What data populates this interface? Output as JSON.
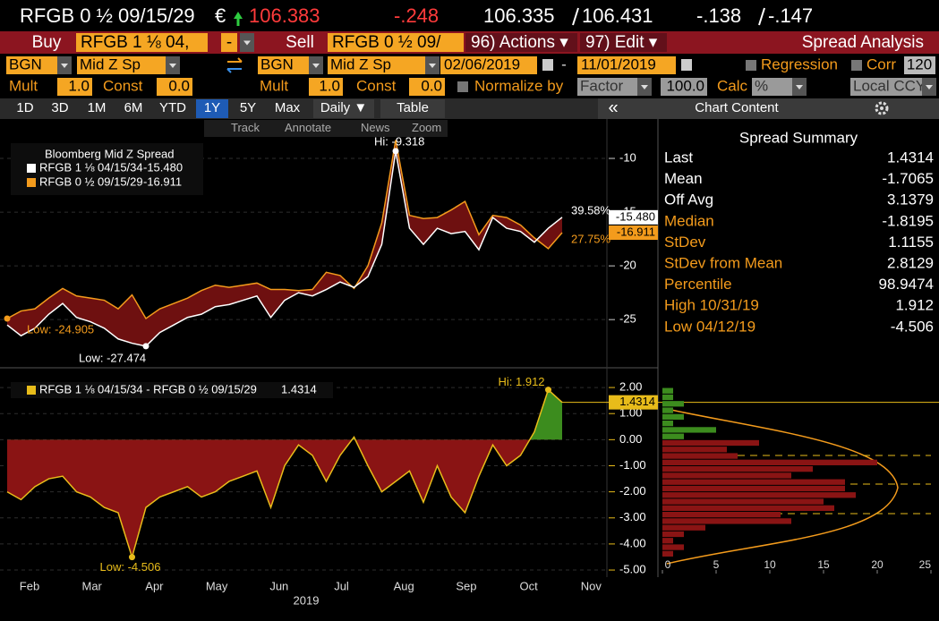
{
  "quote_bar": {
    "security": "RFGB 0 ½ 09/15/29",
    "currency": "€",
    "price": "106.383",
    "change": "-.248",
    "bid": "106.335",
    "ask": "106.431",
    "bid_change": "-.138",
    "ask_change": "-.147"
  },
  "order_bar": {
    "buy": "Buy",
    "buy_security": "RFGB 1 ⅛ 04,",
    "dash": "-",
    "sell": "Sell",
    "sell_security": "RFGB 0 ½ 09/",
    "actions": "96) Actions ▾",
    "edit": "97) Edit ▾",
    "title": "Spread Analysis"
  },
  "settings": {
    "source_1": "BGN",
    "field_1": "Mid Z Sp",
    "source_2": "BGN",
    "field_2": "Mid Z Sp",
    "start_date": "02/06/2019",
    "date_separator": "-",
    "end_date": "11/01/2019",
    "regression": "Regression",
    "corr": "Corr",
    "corr_window": "120",
    "mult_label_1": "Mult",
    "mult_1": "1.0",
    "const_label_1": "Const",
    "const_1": "0.0",
    "mult_label_2": "Mult",
    "mult_2": "1.0",
    "const_label_2": "Const",
    "const_2": "0.0",
    "normalize": "Normalize by",
    "normalize_method": "Factor",
    "factor": "100.0",
    "calc": "Calc",
    "calc_method": "%",
    "currency": "Local CCY"
  },
  "tabs": [
    "1D",
    "3D",
    "1M",
    "6M",
    "YTD",
    "1Y",
    "5Y",
    "Max"
  ],
  "active_tab": "1Y",
  "frequency": "Daily ▼",
  "table": "Table",
  "collapse": "«",
  "chart_content": "Chart Content",
  "chart_tools": [
    "Track",
    "Annotate",
    "News",
    "Zoom"
  ],
  "price_chart": {
    "type": "line",
    "title": "Bloomberg Mid Z Spread",
    "ylim": [
      -29.4,
      -6.5
    ],
    "yticks": [
      -10,
      -15,
      -20,
      -25
    ],
    "grid": true,
    "fill_color": "#6e1010",
    "series": [
      {
        "name": "RFGB 1 ⅛ 04/15/34",
        "value_label": "-15.480",
        "color": "#ffffff",
        "values": [
          -25.5,
          -26.5,
          -25.8,
          -24.5,
          -23.5,
          -24.8,
          -25.2,
          -25.8,
          -26.8,
          -27.2,
          -27.474,
          -26.2,
          -25.5,
          -24.8,
          -24.5,
          -23.8,
          -23.6,
          -23.2,
          -22.8,
          -24.8,
          -23.2,
          -22.5,
          -22.8,
          -22.2,
          -21.5,
          -22.0,
          -21.0,
          -18.0,
          -9.318,
          -16.5,
          -18.0,
          -16.5,
          -17.0,
          -16.8,
          -18.5,
          -15.5,
          -16.5,
          -16.8,
          -17.8,
          -16.5,
          -15.48
        ]
      },
      {
        "name": "RFGB 0 ½ 09/15/29",
        "value_label": "-16.911",
        "color": "#f39b1c",
        "values": [
          -24.905,
          -24.2,
          -24.0,
          -23.0,
          -22.1,
          -22.8,
          -23.0,
          -23.2,
          -24.0,
          -22.7,
          -24.9,
          -24.0,
          -23.5,
          -23.0,
          -22.3,
          -21.8,
          -22.0,
          -21.8,
          -21.6,
          -22.2,
          -22.2,
          -22.3,
          -22.2,
          -20.6,
          -20.9,
          -22.1,
          -20.0,
          -16.0,
          -8.3,
          -15.3,
          -15.6,
          -15.5,
          -14.8,
          -14.0,
          -17.1,
          -15.3,
          -15.5,
          -16.2,
          -17.4,
          -18.4,
          -16.911
        ]
      }
    ],
    "annotations": {
      "orange_low": "Low: -24.905",
      "white_low": "Low: -27.474",
      "white_high": "Hi: -9.318",
      "pct_1": "39.58%",
      "pct_2": "27.75%"
    }
  },
  "spread_chart": {
    "type": "area",
    "name": "RFGB 1 ⅛ 04/15/34 - RFGB 0 ½ 09/15/29",
    "value_label": "1.4314",
    "color": "#e8bc1a",
    "ylim": [
      -5.17,
      2.62
    ],
    "yticks": [
      {
        "value": 2,
        "label": "2.00"
      },
      {
        "value": 1,
        "label": "1.00"
      },
      {
        "value": 0,
        "label": "0.00"
      },
      {
        "value": -1,
        "label": "-1.00"
      },
      {
        "value": -2,
        "label": "-2.00"
      },
      {
        "value": -3,
        "label": "-3.00"
      },
      {
        "value": -4,
        "label": "-4.00"
      },
      {
        "value": -5,
        "label": "-5.00"
      }
    ],
    "colors": {
      "negative": "#8a1414",
      "positive": "#3c8c1e"
    },
    "values": [
      -2.0,
      -2.3,
      -1.8,
      -1.5,
      -1.4,
      -2.0,
      -2.2,
      -2.6,
      -2.8,
      -4.506,
      -2.6,
      -2.2,
      -2.0,
      -1.8,
      -2.2,
      -2.0,
      -1.6,
      -1.4,
      -1.2,
      -2.6,
      -1.0,
      -0.2,
      -0.6,
      -1.6,
      -0.6,
      0.1,
      -1.0,
      -2.0,
      -1.6,
      -1.2,
      -2.4,
      -1.0,
      -2.2,
      -2.8,
      -1.4,
      -0.2,
      -1.0,
      -0.6,
      0.3,
      1.912,
      1.4314
    ],
    "annotations": {
      "high": "Hi: 1.912",
      "low": "Low: -4.506"
    }
  },
  "histogram": {
    "type": "histogram",
    "bins": [
      -4.5,
      -4.25,
      -4.0,
      -3.75,
      -3.5,
      -3.25,
      -3.0,
      -2.75,
      -2.5,
      -2.25,
      -2.0,
      -1.75,
      -1.5,
      -1.25,
      -1.0,
      -0.75,
      -0.5,
      -0.25,
      0,
      0.25,
      0.5,
      0.75,
      1.0,
      1.25,
      1.5,
      1.75,
      2.0
    ],
    "counts": [
      1,
      2,
      1,
      2,
      4,
      12,
      11,
      16,
      15,
      18,
      17,
      17,
      12,
      14,
      20,
      7,
      6,
      9,
      2,
      5,
      1,
      2,
      1,
      2,
      1,
      1
    ],
    "xlim": [
      0,
      25
    ],
    "xticks": [
      0,
      5,
      10,
      15,
      20,
      25
    ]
  },
  "months": [
    "Feb",
    "Mar",
    "Apr",
    "May",
    "Jun",
    "Jul",
    "Aug",
    "Sep",
    "Oct",
    "Nov"
  ],
  "year": "2019",
  "summary": {
    "title": "Spread Summary",
    "rows": [
      [
        "Last",
        "1.4314"
      ],
      [
        "Mean",
        "-1.7065"
      ],
      [
        "Off Avg",
        "3.1379"
      ],
      [
        "Median",
        "-1.8195"
      ],
      [
        "StDev",
        "1.1155"
      ],
      [
        "StDev from Mean",
        "2.8129"
      ],
      [
        "Percentile",
        "98.9474"
      ],
      [
        "High 10/31/19",
        "1.912"
      ],
      [
        "Low 04/12/19",
        "-4.506"
      ]
    ]
  }
}
